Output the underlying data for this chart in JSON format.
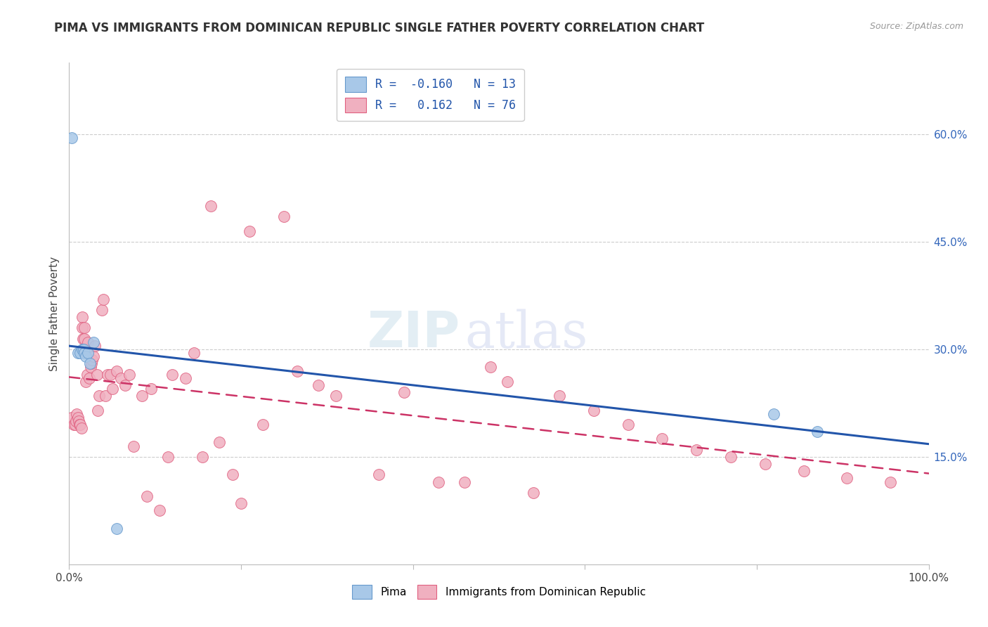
{
  "title": "PIMA VS IMMIGRANTS FROM DOMINICAN REPUBLIC SINGLE FATHER POVERTY CORRELATION CHART",
  "source": "Source: ZipAtlas.com",
  "ylabel": "Single Father Poverty",
  "right_yticks": [
    "15.0%",
    "30.0%",
    "45.0%",
    "60.0%"
  ],
  "right_ytick_vals": [
    0.15,
    0.3,
    0.45,
    0.6
  ],
  "xlim": [
    0.0,
    1.0
  ],
  "ylim": [
    0.0,
    0.7
  ],
  "legend_r1": "R = -0.160",
  "legend_n1": "N = 13",
  "legend_r2": "R =  0.162",
  "legend_n2": "N = 76",
  "color_pima_fill": "#a8c8e8",
  "color_pima_edge": "#6699cc",
  "color_dr_fill": "#f0b0c0",
  "color_dr_edge": "#e06080",
  "color_pima_line": "#2255aa",
  "color_dr_line": "#cc3366",
  "watermark_zip": "ZIP",
  "watermark_atlas": "atlas",
  "pima_x": [
    0.003,
    0.01,
    0.013,
    0.015,
    0.017,
    0.018,
    0.019,
    0.022,
    0.024,
    0.028,
    0.055,
    0.82,
    0.87
  ],
  "pima_y": [
    0.595,
    0.295,
    0.295,
    0.3,
    0.3,
    0.295,
    0.29,
    0.295,
    0.28,
    0.31,
    0.05,
    0.21,
    0.185
  ],
  "dr_x": [
    0.003,
    0.005,
    0.007,
    0.008,
    0.009,
    0.01,
    0.011,
    0.012,
    0.013,
    0.014,
    0.015,
    0.015,
    0.016,
    0.017,
    0.018,
    0.018,
    0.019,
    0.02,
    0.021,
    0.022,
    0.023,
    0.025,
    0.026,
    0.027,
    0.028,
    0.03,
    0.032,
    0.033,
    0.035,
    0.038,
    0.04,
    0.042,
    0.045,
    0.048,
    0.05,
    0.055,
    0.06,
    0.065,
    0.07,
    0.075,
    0.085,
    0.09,
    0.095,
    0.105,
    0.115,
    0.12,
    0.135,
    0.145,
    0.155,
    0.165,
    0.175,
    0.19,
    0.2,
    0.21,
    0.225,
    0.25,
    0.265,
    0.29,
    0.31,
    0.36,
    0.39,
    0.43,
    0.46,
    0.49,
    0.51,
    0.54,
    0.57,
    0.61,
    0.65,
    0.69,
    0.73,
    0.77,
    0.81,
    0.855,
    0.905,
    0.955
  ],
  "dr_y": [
    0.205,
    0.195,
    0.195,
    0.2,
    0.21,
    0.205,
    0.2,
    0.195,
    0.195,
    0.19,
    0.345,
    0.33,
    0.315,
    0.3,
    0.33,
    0.315,
    0.255,
    0.3,
    0.265,
    0.31,
    0.26,
    0.275,
    0.28,
    0.285,
    0.29,
    0.305,
    0.265,
    0.215,
    0.235,
    0.355,
    0.37,
    0.235,
    0.265,
    0.265,
    0.245,
    0.27,
    0.26,
    0.25,
    0.265,
    0.165,
    0.235,
    0.095,
    0.245,
    0.075,
    0.15,
    0.265,
    0.26,
    0.295,
    0.15,
    0.5,
    0.17,
    0.125,
    0.085,
    0.465,
    0.195,
    0.485,
    0.27,
    0.25,
    0.235,
    0.125,
    0.24,
    0.115,
    0.115,
    0.275,
    0.255,
    0.1,
    0.235,
    0.215,
    0.195,
    0.175,
    0.16,
    0.15,
    0.14,
    0.13,
    0.12,
    0.115
  ]
}
